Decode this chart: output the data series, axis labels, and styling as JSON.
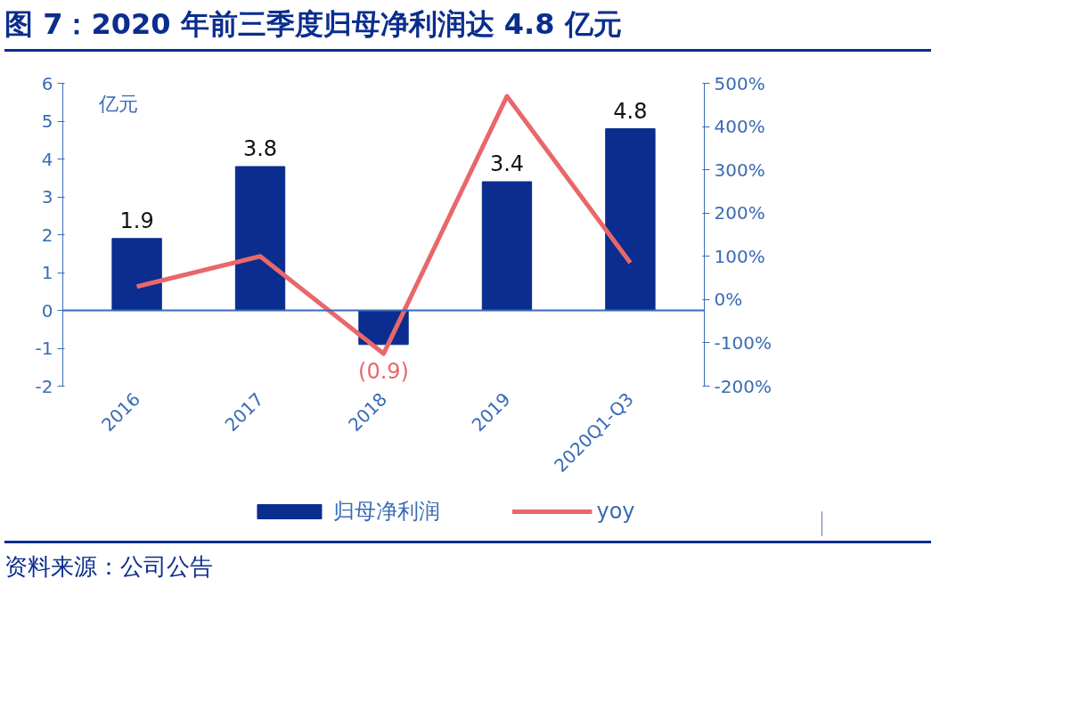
{
  "chart_data": {
    "type": "bar",
    "title": "图 7：2020 年前三季度归母净利润达 4.8 亿元",
    "ylabel": "亿元",
    "categories": [
      "2016",
      "2017",
      "2018",
      "2019",
      "2020Q1-Q3"
    ],
    "series": [
      {
        "name": "归母净利润",
        "color": "#0a2d8f",
        "values": [
          1.9,
          3.8,
          -0.9,
          3.4,
          4.8
        ],
        "value_labels": [
          "1.9",
          "3.8",
          "(0.9)",
          "3.4",
          "4.8"
        ]
      },
      {
        "name": "yoy",
        "type": "line",
        "axis": "y2",
        "color": "#e8686a",
        "values": [
          30,
          100,
          -125,
          470,
          85
        ]
      }
    ],
    "ylim": [
      -2,
      6
    ],
    "yticks": [
      -2,
      -1,
      0,
      1,
      2,
      3,
      4,
      5,
      6
    ],
    "y2lim": [
      -200,
      500
    ],
    "y2ticks": [
      {
        "value": -200,
        "label": "-200%"
      },
      {
        "value": -100,
        "label": "-100%"
      },
      {
        "value": 0,
        "label": "0%"
      },
      {
        "value": 100,
        "label": "100%"
      },
      {
        "value": 200,
        "label": "200%"
      },
      {
        "value": 300,
        "label": "300%"
      },
      {
        "value": 400,
        "label": "400%"
      },
      {
        "value": 500,
        "label": "500%"
      }
    ],
    "grid": false,
    "legend": "bottom",
    "ref_lines": [
      {
        "axis": "y",
        "value": 0
      }
    ],
    "annotations": [
      "资料来源：公司公告"
    ]
  }
}
